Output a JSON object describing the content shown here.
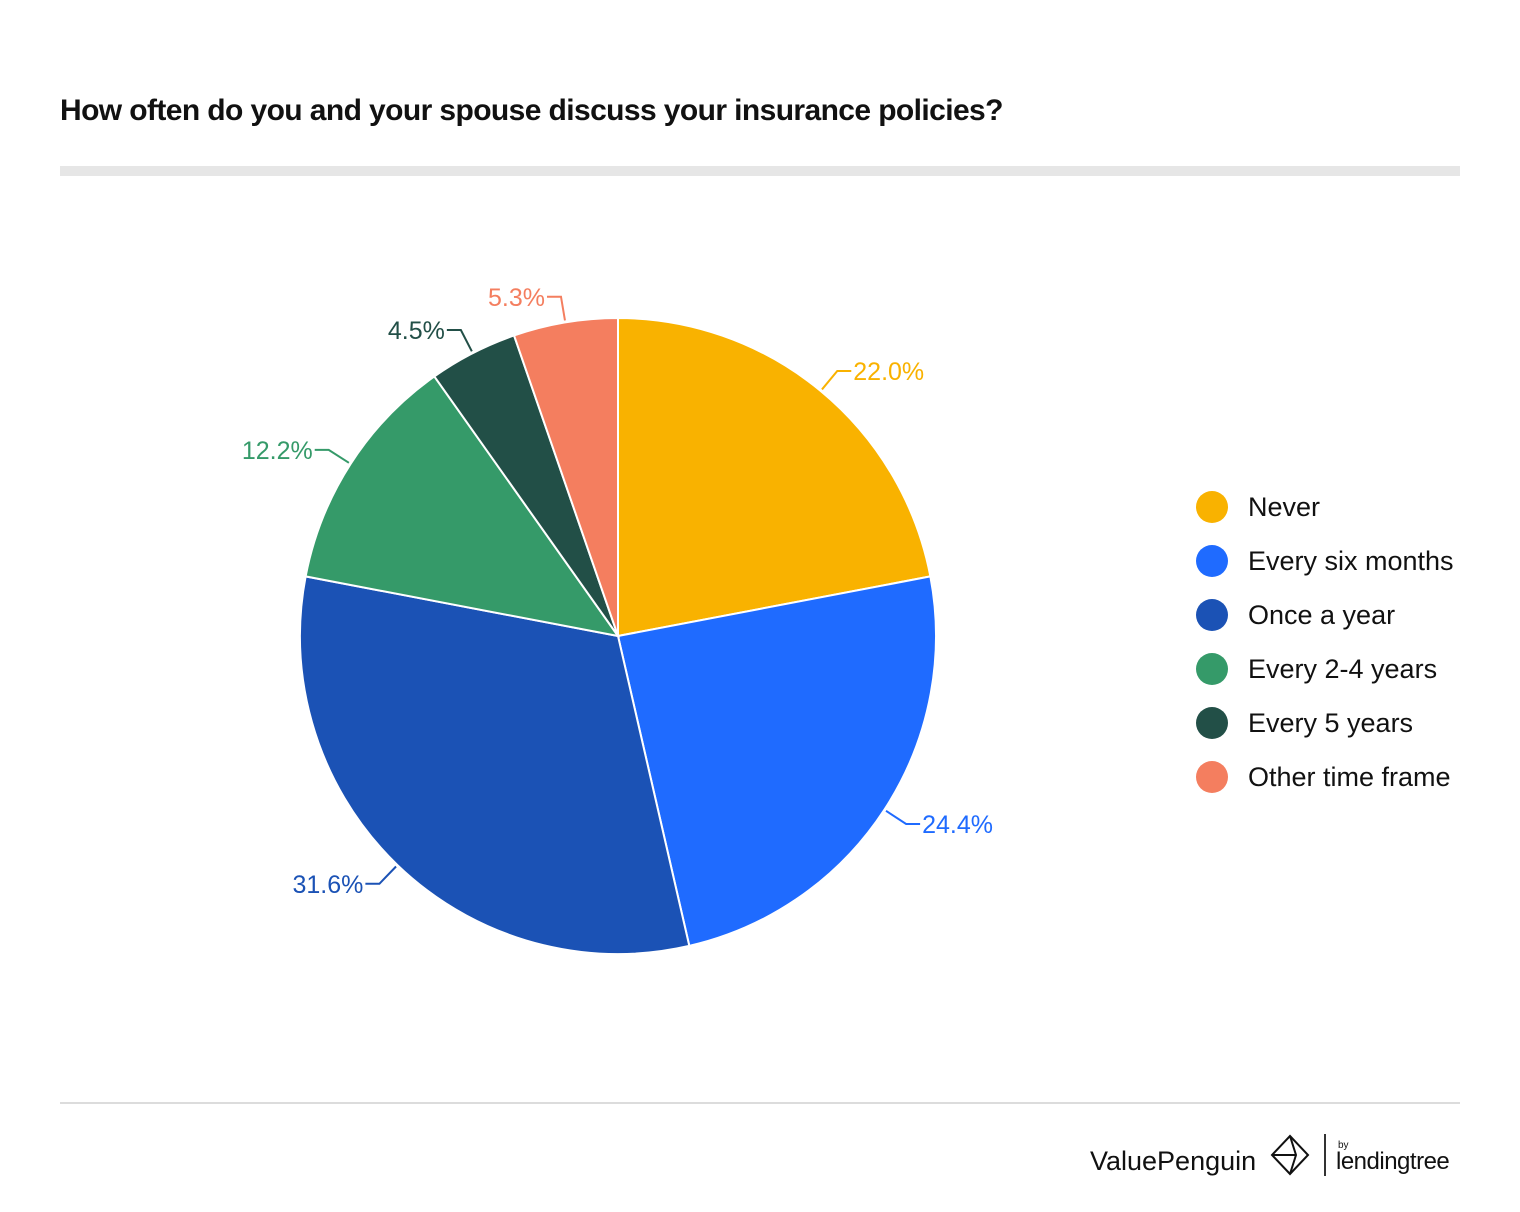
{
  "chart_data": {
    "type": "pie",
    "title": "How often do you and your spouse discuss your insurance policies?",
    "unit": "%",
    "start_angle_deg": 0,
    "direction": "clockwise",
    "legend_position": "right",
    "slices": [
      {
        "label": "Never",
        "value": 22.0,
        "display": "22.0%",
        "color": "#F9B200"
      },
      {
        "label": "Every six months",
        "value": 24.4,
        "display": "24.4%",
        "color": "#1F6BFF"
      },
      {
        "label": "Once a year",
        "value": 31.6,
        "display": "31.6%",
        "color": "#1B52B5"
      },
      {
        "label": "Every 2-4 years",
        "value": 12.2,
        "display": "12.2%",
        "color": "#359A69"
      },
      {
        "label": "Every 5 years",
        "value": 4.5,
        "display": "4.5%",
        "color": "#224F47"
      },
      {
        "label": "Other time frame",
        "value": 5.3,
        "display": "5.3%",
        "color": "#F47E5F"
      }
    ]
  },
  "brand": {
    "valuepenguin": "ValuePenguin",
    "by": "by",
    "lendingtree": "lendingtree",
    "mark_icon": "valuepenguin-diamond-logo-icon"
  }
}
